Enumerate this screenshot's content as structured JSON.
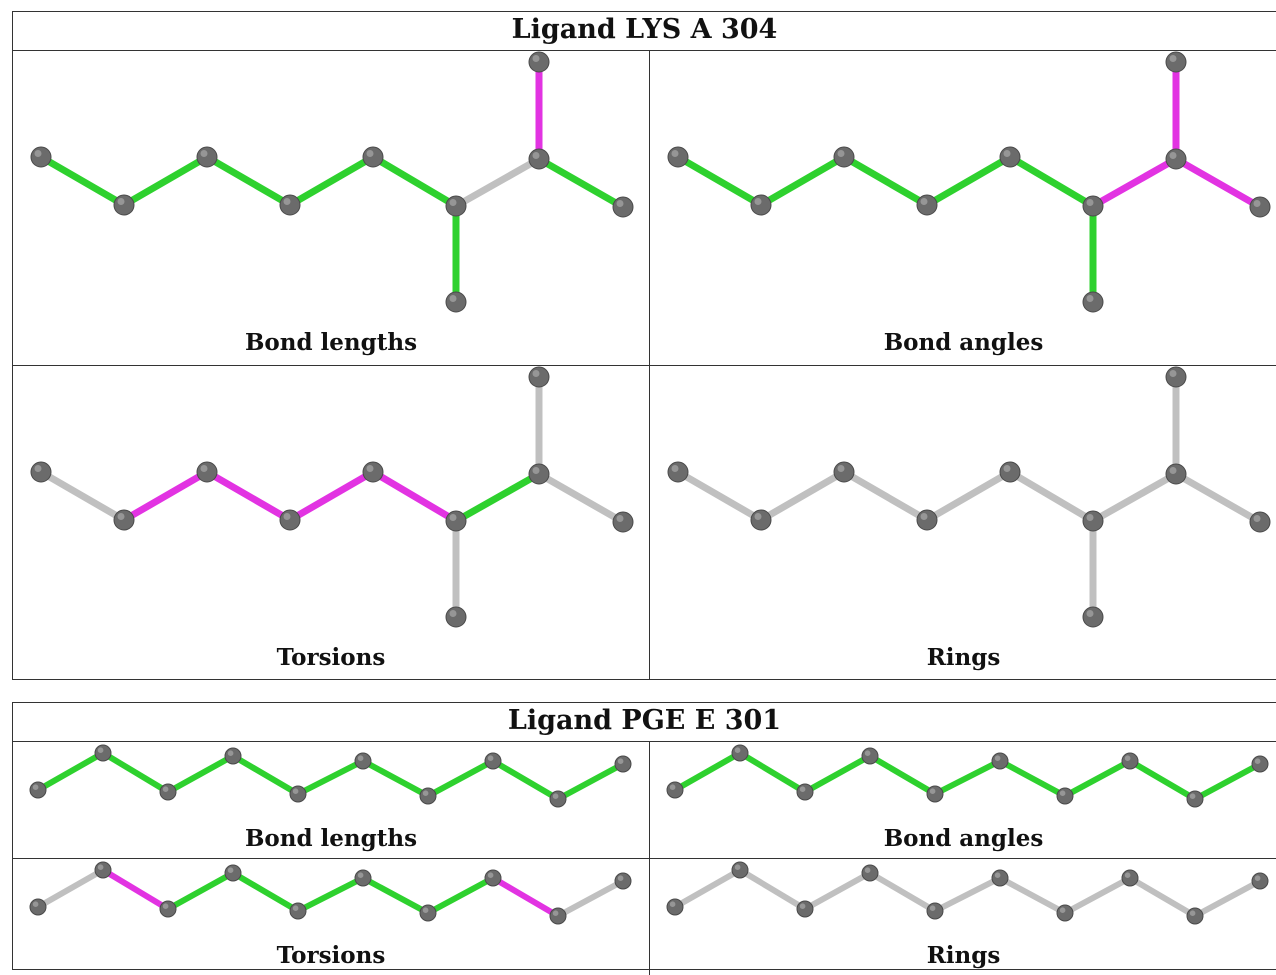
{
  "ligands": [
    {
      "title": "Ligand LYS A 304",
      "panels": [
        {
          "caption": "Bond lengths",
          "bond_colors": [
            "green",
            "green",
            "green",
            "green",
            "green",
            "green",
            "grey",
            "magenta",
            "green"
          ]
        },
        {
          "caption": "Bond angles",
          "bond_colors": [
            "green",
            "green",
            "green",
            "green",
            "green",
            "green",
            "magenta",
            "magenta",
            "magenta"
          ]
        },
        {
          "caption": "Torsions",
          "bond_colors": [
            "grey",
            "magenta",
            "magenta",
            "magenta",
            "magenta",
            "grey",
            "green",
            "grey",
            "grey"
          ]
        },
        {
          "caption": "Rings",
          "bond_colors": [
            "grey",
            "grey",
            "grey",
            "grey",
            "grey",
            "grey",
            "grey",
            "grey",
            "grey"
          ]
        }
      ]
    },
    {
      "title": "Ligand PGE E 301",
      "panels": [
        {
          "caption": "Bond lengths",
          "bond_colors": [
            "green",
            "green",
            "green",
            "green",
            "green",
            "green",
            "green",
            "green",
            "green"
          ]
        },
        {
          "caption": "Bond angles",
          "bond_colors": [
            "green",
            "green",
            "green",
            "green",
            "green",
            "green",
            "green",
            "green",
            "green"
          ]
        },
        {
          "caption": "Torsions",
          "bond_colors": [
            "grey",
            "magenta",
            "green",
            "green",
            "green",
            "green",
            "green",
            "magenta",
            "grey"
          ]
        },
        {
          "caption": "Rings",
          "bond_colors": [
            "grey",
            "grey",
            "grey",
            "grey",
            "grey",
            "grey",
            "grey",
            "grey",
            "grey"
          ]
        }
      ]
    }
  ],
  "colors": {
    "green": "#2ed12e",
    "magenta": "#e233e2",
    "grey": "#c0c0c0",
    "atom": "#6b6b6b"
  }
}
